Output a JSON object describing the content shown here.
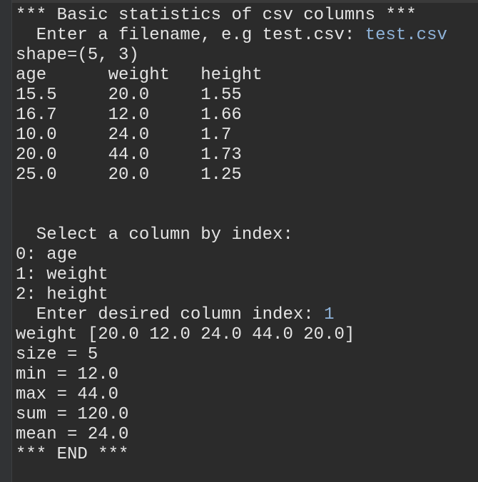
{
  "header": "*** Basic statistics of csv columns ***",
  "filename_prompt": {
    "prompt": "Enter a filename, e.g test.csv:",
    "input": "test.csv"
  },
  "shape": "shape=(5, 3)",
  "table": {
    "columns": [
      "age",
      "weight",
      "height"
    ],
    "rows": [
      [
        "15.5",
        "20.0",
        "1.55"
      ],
      [
        "16.7",
        "12.0",
        "1.66"
      ],
      [
        "10.0",
        "24.0",
        "1.7"
      ],
      [
        "20.0",
        "44.0",
        "1.73"
      ],
      [
        "25.0",
        "20.0",
        "1.25"
      ]
    ]
  },
  "select_prompt": "Select a column by index:",
  "options": [
    "0: age",
    "1: weight",
    "2: height"
  ],
  "index_prompt": {
    "prompt": "Enter desired column index:",
    "input": "1"
  },
  "result_lines": [
    "weight [20.0 12.0 24.0 44.0 20.0]",
    "size = 5",
    "min = 12.0",
    "max = 44.0",
    "sum = 120.0",
    "mean = 24.0"
  ],
  "footer": "*** END ***"
}
